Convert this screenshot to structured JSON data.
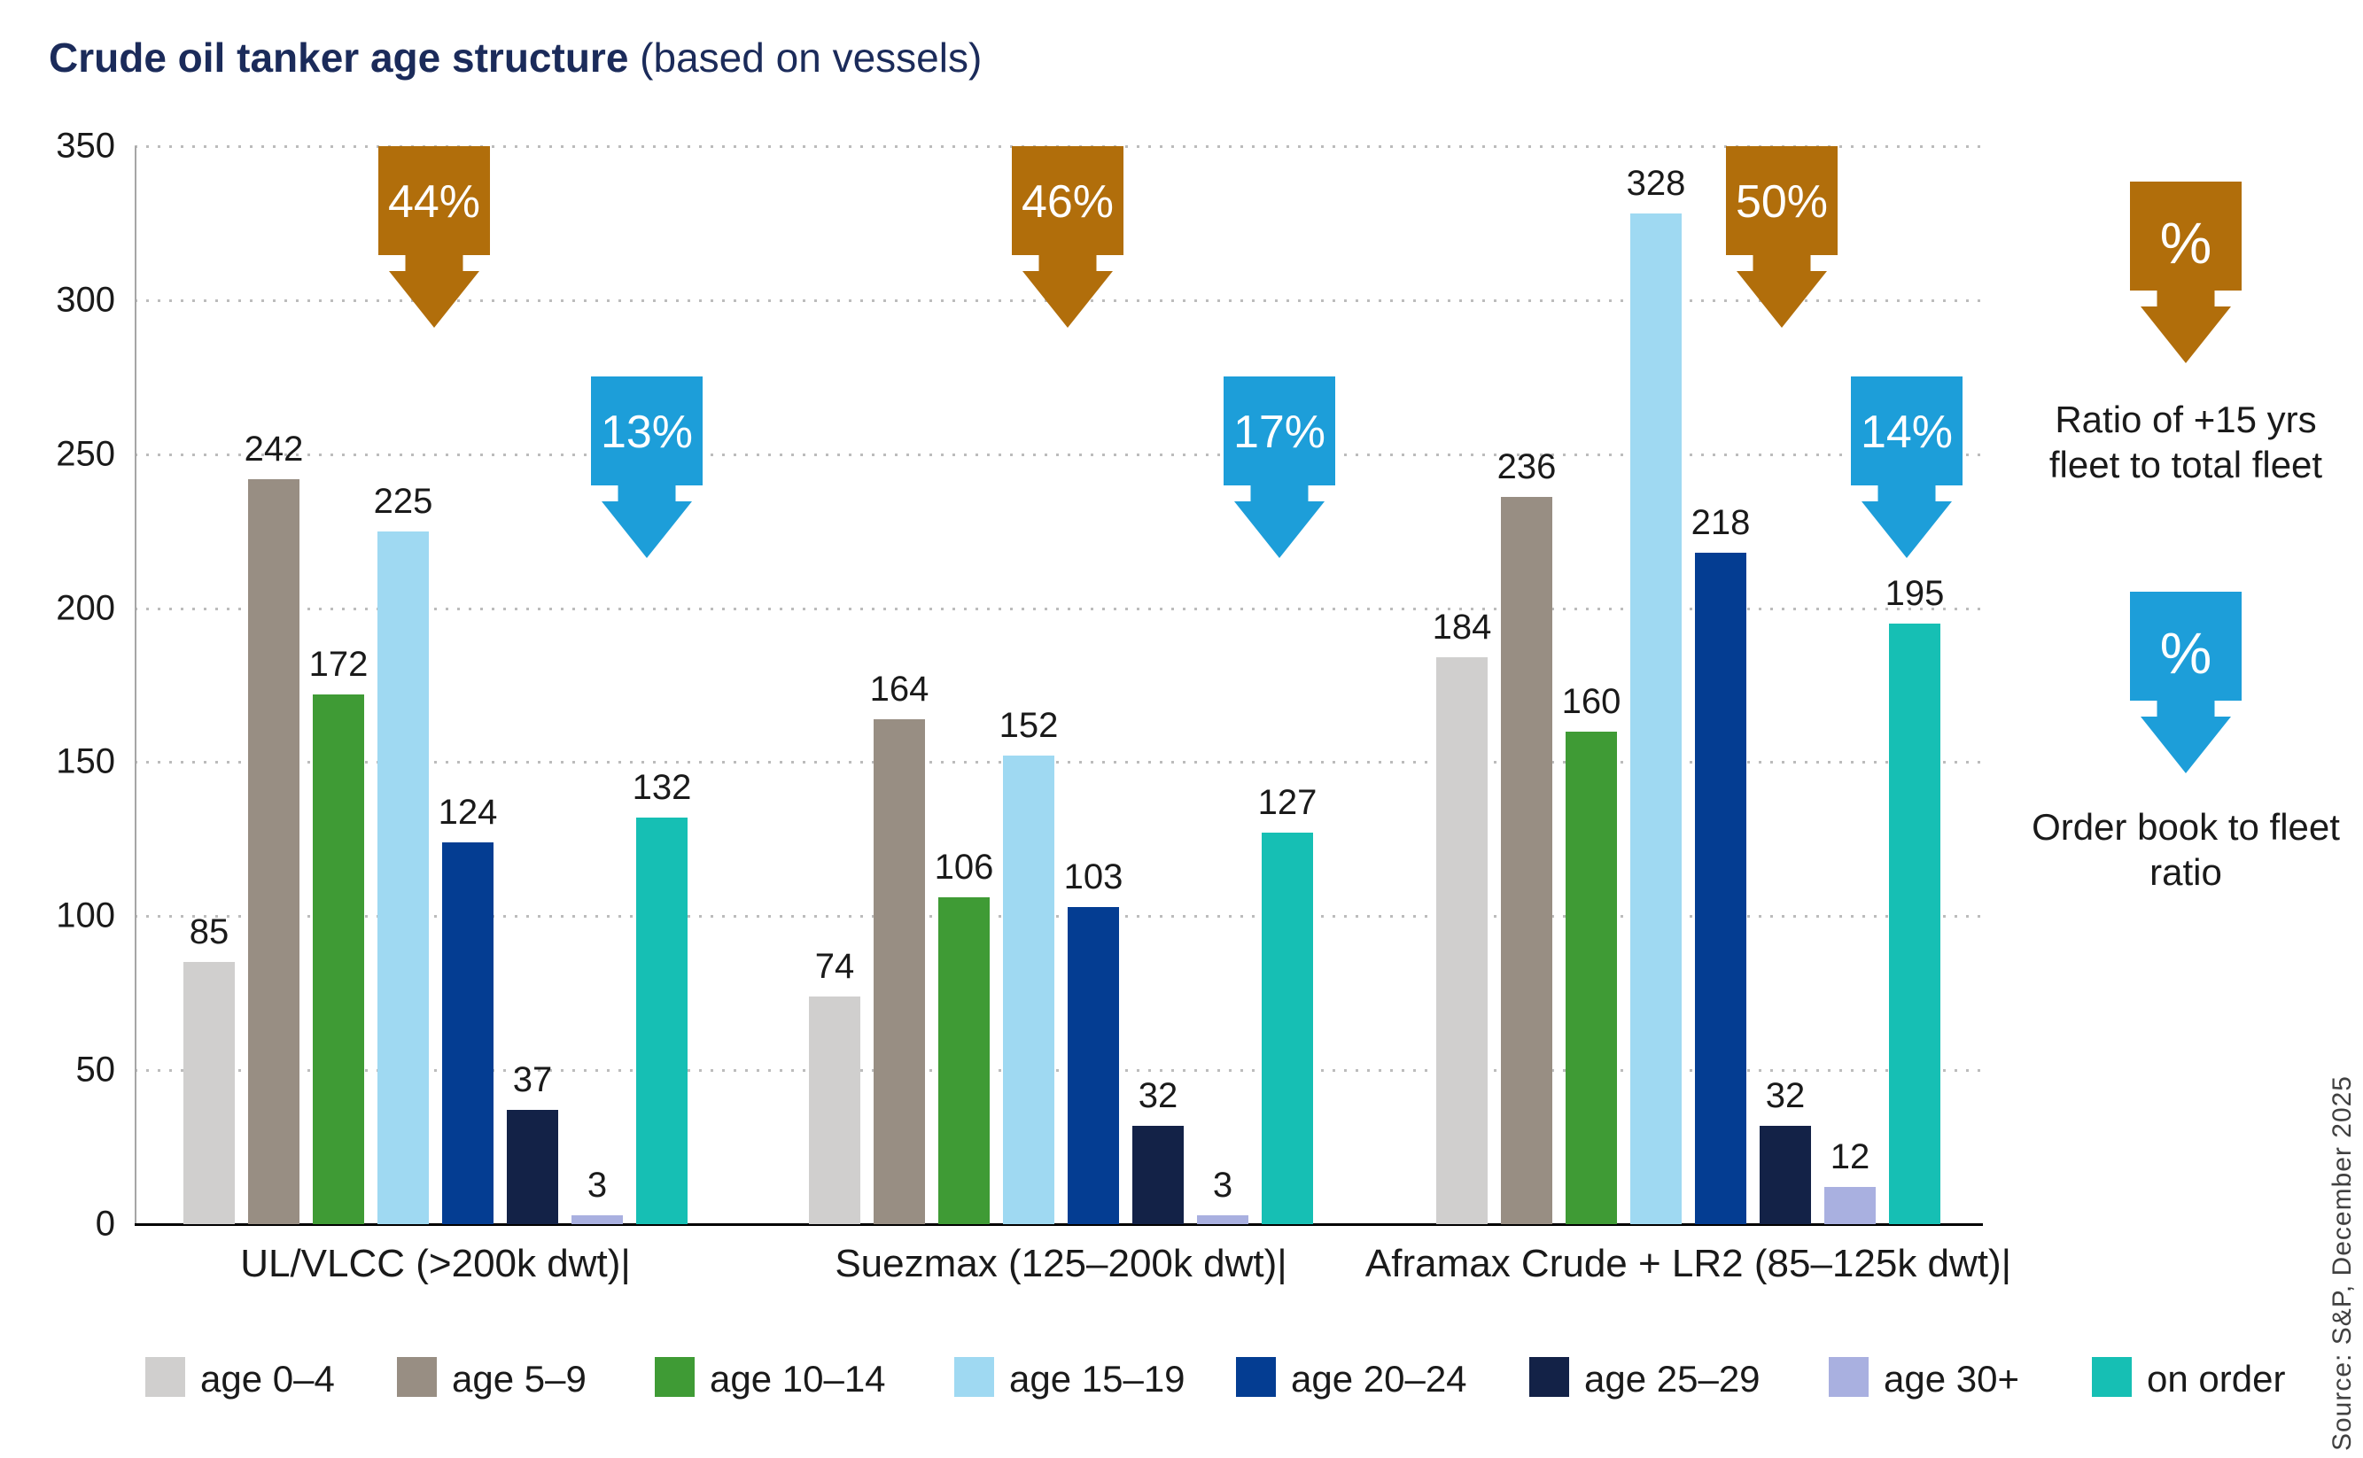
{
  "title": {
    "main": "Crude oil tanker age structure",
    "suffix": " (based on vessels)"
  },
  "chart_data": {
    "type": "bar",
    "categories": [
      "UL/VLCC (>200k dwt)|",
      "Suezmax (125–200k dwt)|",
      "Aframax Crude + LR2 (85–125k dwt)|"
    ],
    "series": [
      {
        "name": "age 0–4",
        "color": "#d0cfce",
        "values": [
          85,
          74,
          184
        ]
      },
      {
        "name": "age 5–9",
        "color": "#988e83",
        "values": [
          242,
          164,
          236
        ]
      },
      {
        "name": "age 10–14",
        "color": "#3f9b35",
        "values": [
          172,
          106,
          160
        ]
      },
      {
        "name": "age 15–19",
        "color": "#9fd9f2",
        "values": [
          225,
          152,
          328
        ]
      },
      {
        "name": "age 20–24",
        "color": "#043d92",
        "values": [
          124,
          103,
          218
        ]
      },
      {
        "name": "age 25–29",
        "color": "#132247",
        "values": [
          37,
          32,
          32
        ]
      },
      {
        "name": "age 30+",
        "color": "#a9b0e0",
        "values": [
          3,
          3,
          12
        ]
      },
      {
        "name": "on order",
        "color": "#16bfb4",
        "values": [
          132,
          127,
          195
        ]
      }
    ],
    "ylim": [
      0,
      350
    ],
    "ytick_step": 50,
    "grid": "horizontal-dotted",
    "legend_position": "bottom"
  },
  "annotations": {
    "ratio_15yrs_arrows": {
      "color": "#b16e0b",
      "values": [
        "44%",
        "46%",
        "50%"
      ]
    },
    "orderbook_arrows": {
      "color": "#1d9ed9",
      "values": [
        "13%",
        "17%",
        "14%"
      ]
    },
    "key_orange": {
      "symbol": "%",
      "label": "Ratio of +15 yrs fleet to total fleet"
    },
    "key_blue": {
      "symbol": "%",
      "label": "Order book to fleet ratio"
    }
  },
  "source": "Source: S&P, December 2025"
}
